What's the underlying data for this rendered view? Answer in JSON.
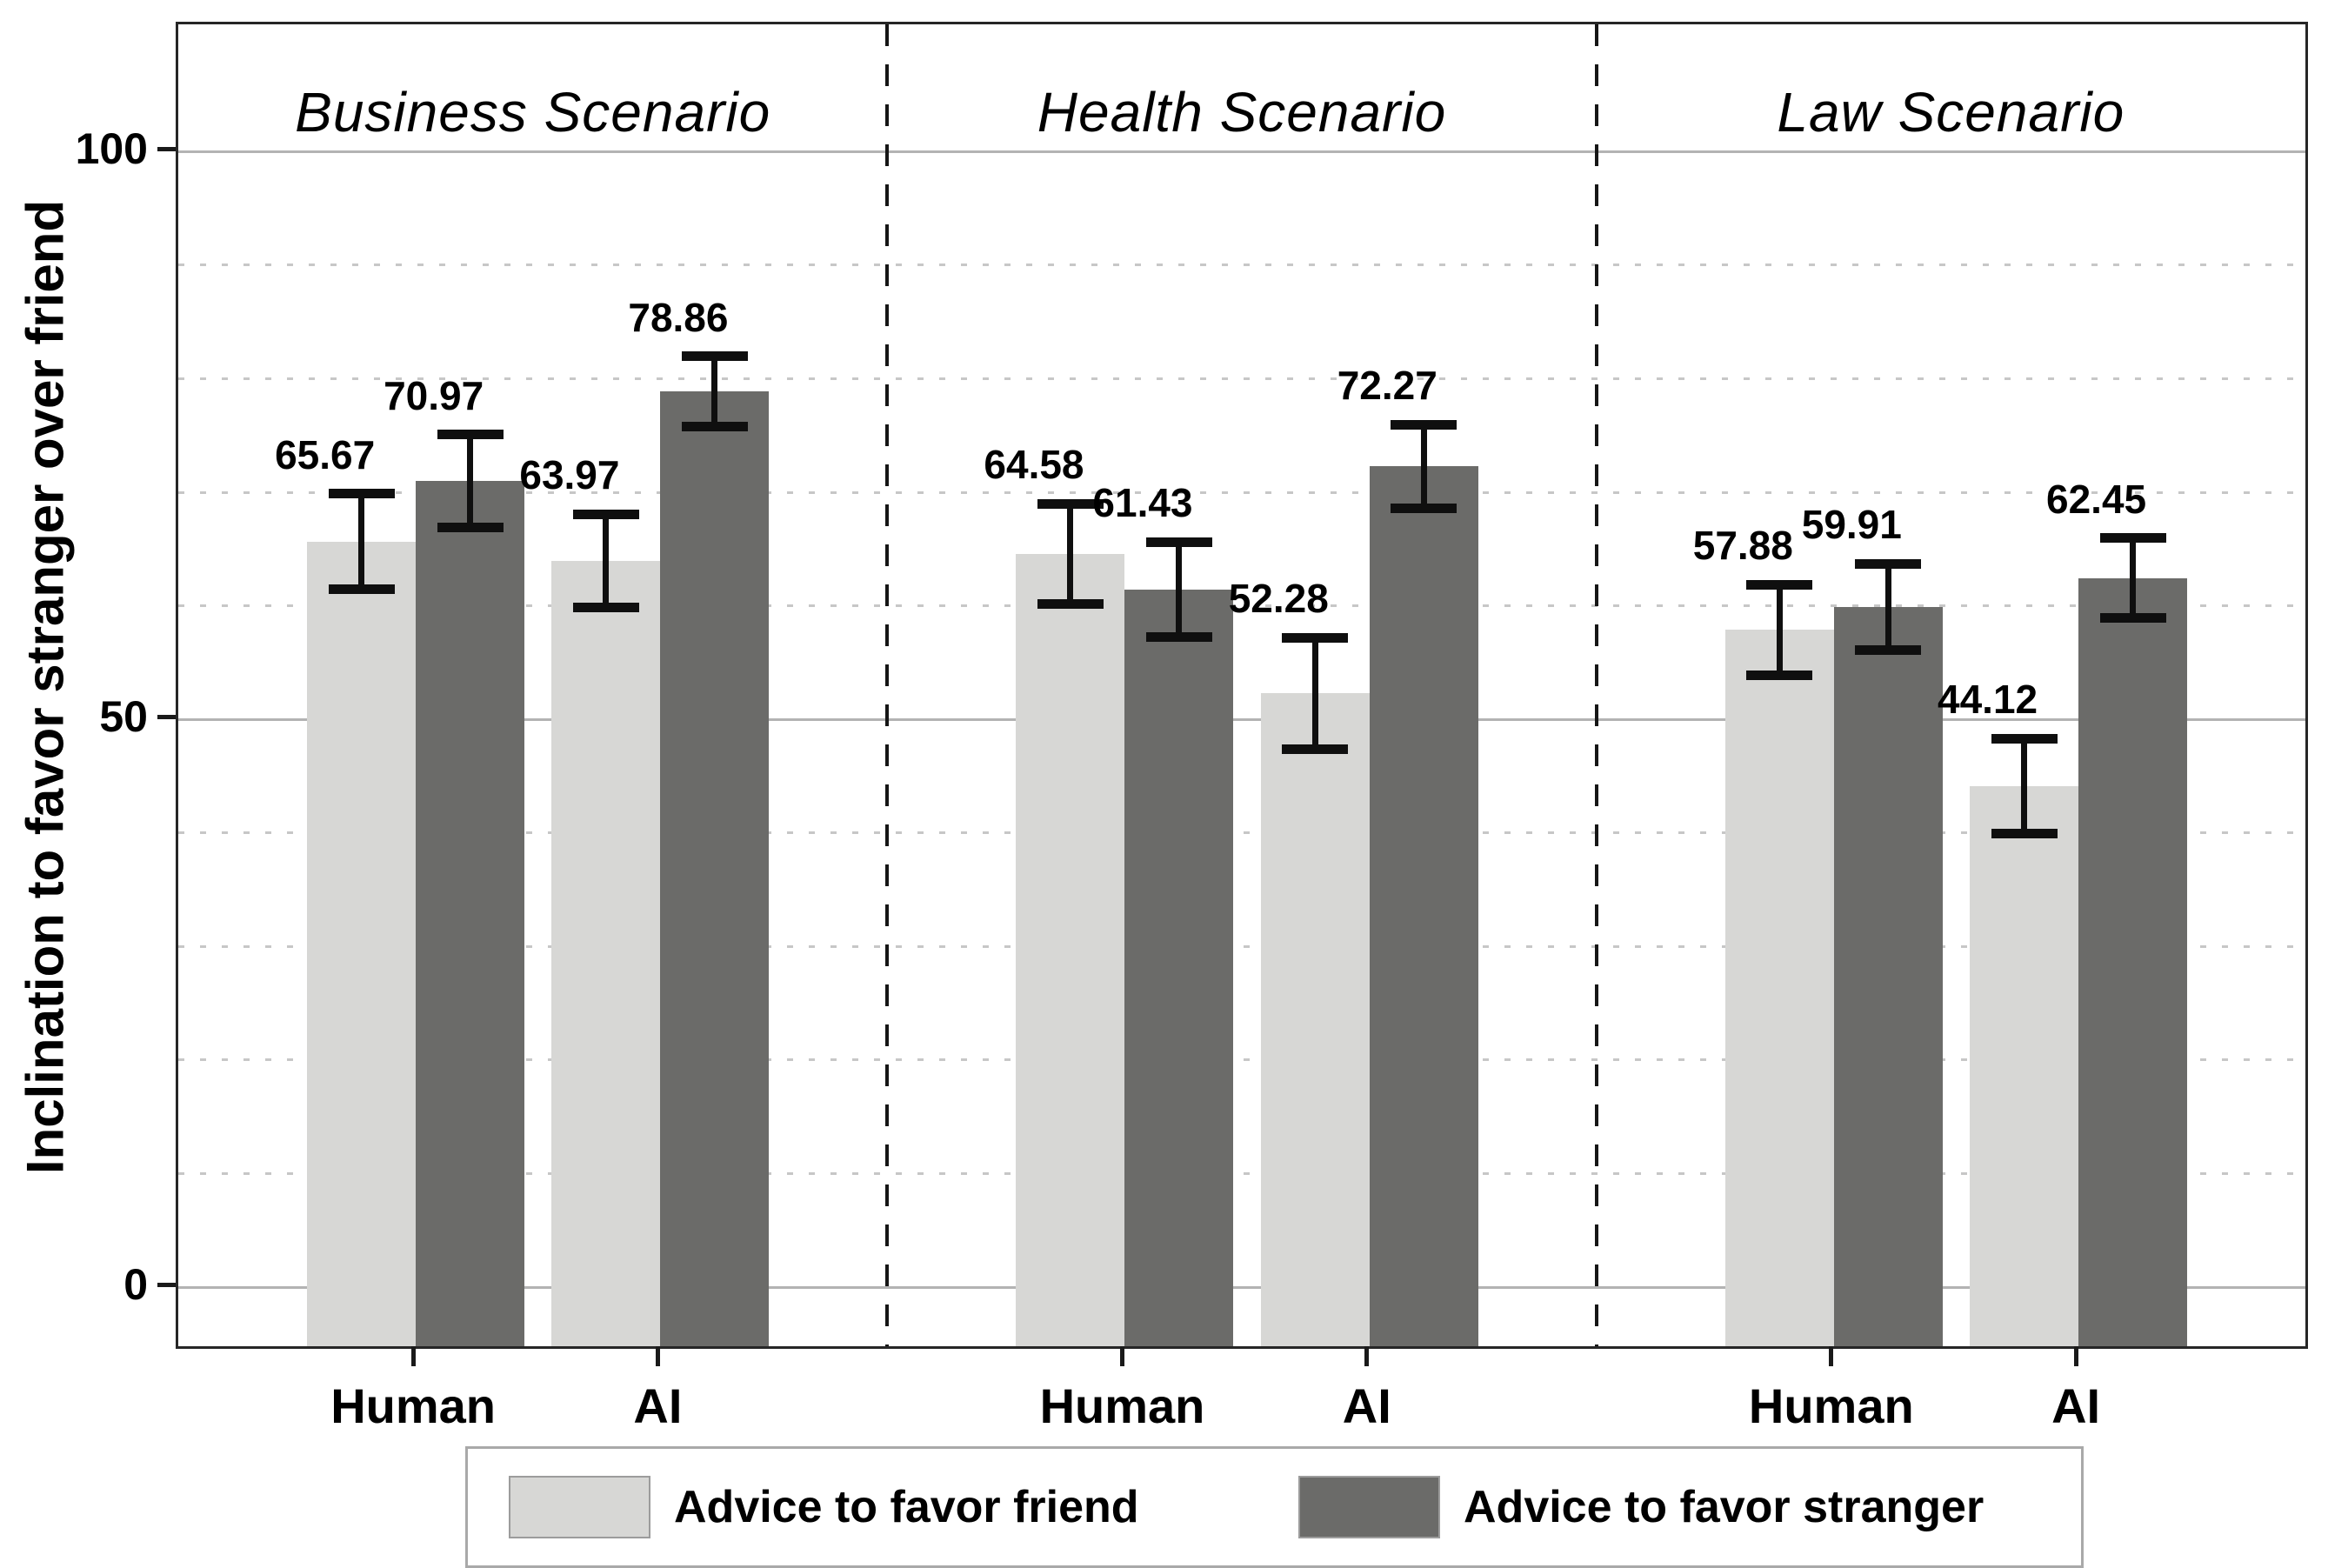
{
  "axis": {
    "ylabel": "Inclination to favor stranger over friend",
    "y_ticks": [
      0,
      50,
      100
    ],
    "x_categories": [
      "Human",
      "AI"
    ]
  },
  "legend": {
    "items": [
      {
        "label": "Advice to favor friend",
        "color": "#d7d7d5"
      },
      {
        "label": "Advice to favor stranger",
        "color": "#6b6b69"
      }
    ]
  },
  "chart_data": {
    "type": "bar",
    "ylabel": "Inclination to favor stranger over friend",
    "ylim": [
      0,
      100
    ],
    "y_tick_values": [
      0,
      50,
      100
    ],
    "gridlines": {
      "solid_at": [
        0,
        50,
        100
      ],
      "dotted_at": [
        10,
        20,
        30,
        40,
        60,
        70,
        80,
        90
      ]
    },
    "legend_position": "bottom",
    "categories": [
      "Human",
      "AI"
    ],
    "panels": [
      {
        "title": "Business Scenario",
        "series": [
          {
            "name": "Advice to favor friend",
            "color": "#d7d7d5",
            "values": [
              65.67,
              63.97
            ],
            "errors": [
              4.2,
              4.1
            ]
          },
          {
            "name": "Advice to favor stranger",
            "color": "#6b6b69",
            "values": [
              70.97,
              78.86
            ],
            "errors": [
              4.1,
              3.1
            ]
          }
        ]
      },
      {
        "title": "Health Scenario",
        "series": [
          {
            "name": "Advice to favor friend",
            "color": "#d7d7d5",
            "values": [
              64.58,
              52.28
            ],
            "errors": [
              4.4,
              4.9
            ]
          },
          {
            "name": "Advice to favor stranger",
            "color": "#6b6b69",
            "values": [
              61.43,
              72.27
            ],
            "errors": [
              4.2,
              3.7
            ]
          }
        ]
      },
      {
        "title": "Law Scenario",
        "series": [
          {
            "name": "Advice to favor friend",
            "color": "#d7d7d5",
            "values": [
              57.88,
              44.12
            ],
            "errors": [
              4.0,
              4.2
            ]
          },
          {
            "name": "Advice to favor stranger",
            "color": "#6b6b69",
            "values": [
              59.91,
              62.45
            ],
            "errors": [
              3.8,
              3.5
            ]
          }
        ]
      }
    ]
  }
}
